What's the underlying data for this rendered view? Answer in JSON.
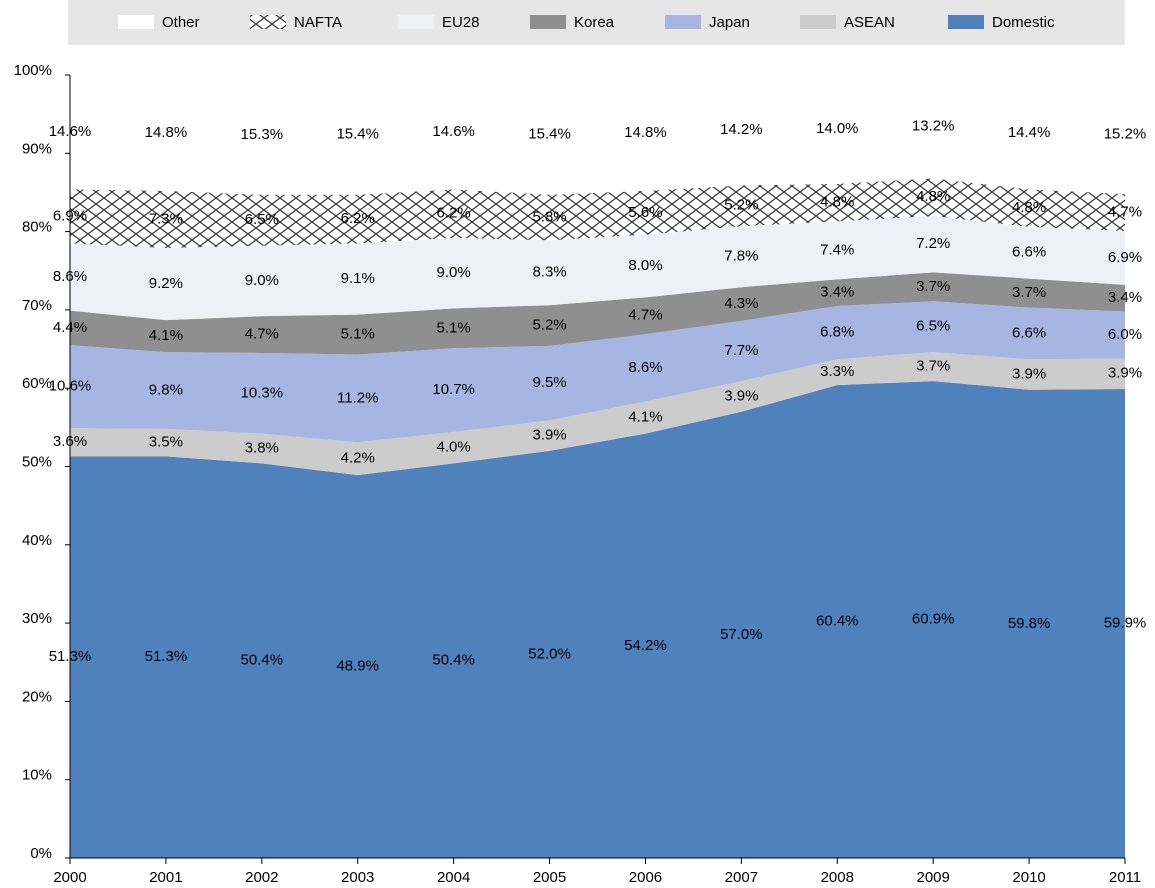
{
  "chart_data": {
    "type": "stacked_area",
    "categories": [
      "2000",
      "2001",
      "2002",
      "2003",
      "2004",
      "2005",
      "2006",
      "2007",
      "2008",
      "2009",
      "2010",
      "2011"
    ],
    "series": [
      {
        "name": "Domestic",
        "color": "#4f81bd",
        "values": [
          51.3,
          51.3,
          50.4,
          48.9,
          50.4,
          52.0,
          54.2,
          57.0,
          60.4,
          60.9,
          59.8,
          59.9
        ],
        "value_labels": [
          "51.3%",
          "51.3%",
          "50.4%",
          "48.9%",
          "50.4%",
          "52.0%",
          "54.2%",
          "57.0%",
          "60.4%",
          "60.9%",
          "59.8%",
          "59.9%"
        ]
      },
      {
        "name": "ASEAN",
        "color": "#cccccc",
        "values": [
          3.6,
          3.5,
          3.8,
          4.2,
          4.0,
          3.9,
          4.1,
          3.9,
          3.3,
          3.7,
          3.9,
          3.9
        ],
        "value_labels": [
          "3.6%",
          "3.5%",
          "3.8%",
          "4.2%",
          "4.0%",
          "3.9%",
          "4.1%",
          "3.9%",
          "3.3%",
          "3.7%",
          "3.9%",
          "3.9%"
        ]
      },
      {
        "name": "Japan",
        "color": "#a7b5e2",
        "values": [
          10.6,
          9.8,
          10.3,
          11.2,
          10.7,
          9.5,
          8.6,
          7.7,
          6.8,
          6.5,
          6.6,
          6.0
        ],
        "value_labels": [
          "10.6%",
          "9.8%",
          "10.3%",
          "11.2%",
          "10.7%",
          "9.5%",
          "8.6%",
          "7.7%",
          "6.8%",
          "6.5%",
          "6.6%",
          "6.0%"
        ]
      },
      {
        "name": "Korea",
        "color": "#8f8f8f",
        "values": [
          4.4,
          4.1,
          4.7,
          5.1,
          5.1,
          5.2,
          4.7,
          4.3,
          3.4,
          3.7,
          3.7,
          3.4
        ],
        "value_labels": [
          "4.4%",
          "4.1%",
          "4.7%",
          "5.1%",
          "5.1%",
          "5.2%",
          "4.7%",
          "4.3%",
          "3.4%",
          "3.7%",
          "3.7%",
          "3.4%"
        ]
      },
      {
        "name": "EU28",
        "color": "#eef0f8",
        "values": [
          8.6,
          9.2,
          9.0,
          9.1,
          9.0,
          8.3,
          8.0,
          7.8,
          7.4,
          7.2,
          6.6,
          6.9
        ],
        "value_labels": [
          "8.6%",
          "9.2%",
          "9.0%",
          "9.1%",
          "9.0%",
          "8.3%",
          "8.0%",
          "7.8%",
          "7.4%",
          "7.2%",
          "6.6%",
          "6.9%"
        ]
      },
      {
        "name": "NAFTA",
        "color": "#ffffff",
        "pattern": "crosshatch",
        "values": [
          6.9,
          7.3,
          6.5,
          6.2,
          6.2,
          5.8,
          5.6,
          5.2,
          4.8,
          4.8,
          4.8,
          4.7
        ],
        "value_labels": [
          "6.9%",
          "7.3%",
          "6.5%",
          "6.2%",
          "6.2%",
          "5.8%",
          "5.6%",
          "5.2%",
          "4.8%",
          "4.8%",
          "4.8%",
          "4.7%"
        ]
      },
      {
        "name": "Other",
        "color": "#ffffff",
        "values": [
          14.6,
          14.8,
          15.3,
          15.4,
          14.6,
          15.4,
          14.8,
          14.2,
          14.0,
          13.2,
          14.4,
          15.2
        ],
        "value_labels": [
          "14.6%",
          "14.8%",
          "15.3%",
          "15.4%",
          "14.6%",
          "15.4%",
          "14.8%",
          "14.2%",
          "14.0%",
          "13.2%",
          "14.4%",
          "15.2%"
        ]
      }
    ],
    "legend": "top",
    "ylim": [
      0,
      100
    ],
    "yticks": [
      {
        "value": 0,
        "label": "0%"
      },
      {
        "value": 10,
        "label": "10%"
      },
      {
        "value": 20,
        "label": "20%"
      },
      {
        "value": 30,
        "label": "30%"
      },
      {
        "value": 40,
        "label": "40%"
      },
      {
        "value": 50,
        "label": "50%"
      },
      {
        "value": 60,
        "label": "60%"
      },
      {
        "value": 70,
        "label": "70%"
      },
      {
        "value": 80,
        "label": "80%"
      },
      {
        "value": 90,
        "label": "90%"
      },
      {
        "value": 100,
        "label": "100%"
      }
    ]
  }
}
